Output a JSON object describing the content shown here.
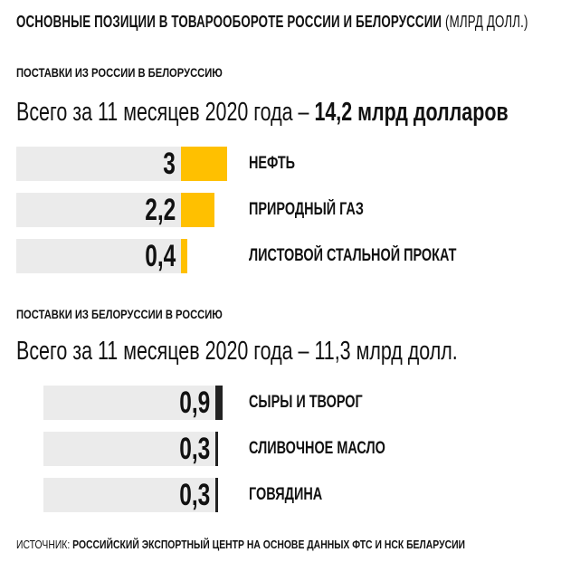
{
  "title": {
    "main": "ОСНОВНЫЕ ПОЗИЦИИ В ТОВАРООБОРОТЕ РОССИИ И БЕЛОРУССИИ",
    "unit": "(МЛРД ДОЛЛ.)"
  },
  "colors": {
    "exports_fill": "#ffc000",
    "imports_fill": "#222222",
    "track": "#ebebeb"
  },
  "chart_data": [
    {
      "type": "bar",
      "title": "ПОСТАВКИ ИЗ РОССИИ В БЕЛОРУССИЮ",
      "subtitle_prefix": "Всего за 11 месяцев 2020 года – ",
      "subtitle_total": "14,2 млрд долларов",
      "categories": [
        "НЕФТЬ",
        "ПРИРОДНЫЙ ГАЗ",
        "ЛИСТОВОЙ СТАЛЬНОЙ ПРОКАТ"
      ],
      "values": [
        3,
        2.2,
        0.4
      ],
      "value_labels": [
        "3",
        "2,2",
        "0,4"
      ],
      "color": "#ffc000"
    },
    {
      "type": "bar",
      "title": "ПОСТАВКИ ИЗ БЕЛОРУССИИ В РОССИЮ",
      "subtitle_prefix": "Всего за 11 месяцев 2020 года – ",
      "subtitle_total": "11,3 млрд долл.",
      "categories": [
        "СЫРЫ И ТВОРОГ",
        "СЛИВОЧНОЕ МАСЛО",
        "ГОВЯДИНА"
      ],
      "values": [
        0.9,
        0.3,
        0.3
      ],
      "value_labels": [
        "0,9",
        "0,3",
        "0,3"
      ],
      "color": "#222222"
    }
  ],
  "source": {
    "label": "ИСТОЧНИК: ",
    "text": "РОССИЙСКИЙ ЭКСПОРТНЫЙ ЦЕНТР НА ОСНОВЕ ДАННЫХ ФТС И НСК БЕЛАРУСИИ"
  }
}
